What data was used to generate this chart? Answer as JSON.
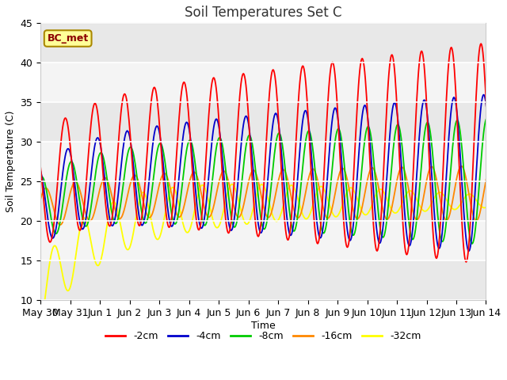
{
  "title": "Soil Temperatures Set C",
  "xlabel": "Time",
  "ylabel": "Soil Temperature (C)",
  "ylim": [
    10,
    45
  ],
  "tick_labels": [
    "May 30",
    "May 31",
    "Jun 1",
    "Jun 2",
    "Jun 3",
    "Jun 4",
    "Jun 5",
    "Jun 6",
    "Jun 7",
    "Jun 8",
    "Jun 9",
    "Jun 10",
    "Jun 11",
    "Jun 12",
    "Jun 13",
    "Jun 14"
  ],
  "colors": {
    "-2cm": "#FF0000",
    "-4cm": "#0000CC",
    "-8cm": "#00CC00",
    "-16cm": "#FF8800",
    "-32cm": "#FFFF00"
  },
  "legend_label": "BC_met",
  "legend_box_color": "#FFFF99",
  "legend_box_edge": "#AA8800",
  "bg_color": "#FFFFFF",
  "plot_bg_color": "#E8E8E8",
  "grid_colors": [
    "#E8E8E8",
    "#F8F8F8"
  ],
  "figsize": [
    6.4,
    4.8
  ],
  "dpi": 100
}
